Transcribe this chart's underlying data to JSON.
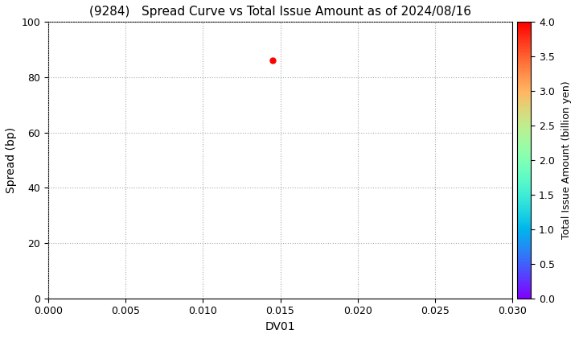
{
  "title": "(9284)   Spread Curve vs Total Issue Amount as of 2024/08/16",
  "xlabel": "DV01",
  "ylabel": "Spread (bp)",
  "colorbar_label": "Total Issue Amount (billion yen)",
  "xlim": [
    0.0,
    0.03
  ],
  "ylim": [
    0,
    100
  ],
  "xticks": [
    0.0,
    0.005,
    0.01,
    0.015,
    0.02,
    0.025,
    0.03
  ],
  "yticks": [
    0,
    20,
    40,
    60,
    80,
    100
  ],
  "colorbar_ticks": [
    0.0,
    0.5,
    1.0,
    1.5,
    2.0,
    2.5,
    3.0,
    3.5,
    4.0
  ],
  "colorbar_min": 0.0,
  "colorbar_max": 4.0,
  "scatter_x": [
    0.0145
  ],
  "scatter_y": [
    86
  ],
  "scatter_color": [
    4.0
  ],
  "scatter_size": 25,
  "background_color": "#ffffff",
  "grid_color": "#aaaaaa",
  "grid_style": "dotted",
  "title_fontsize": 11,
  "axis_fontsize": 10,
  "tick_fontsize": 9,
  "colorbar_fontsize": 9
}
